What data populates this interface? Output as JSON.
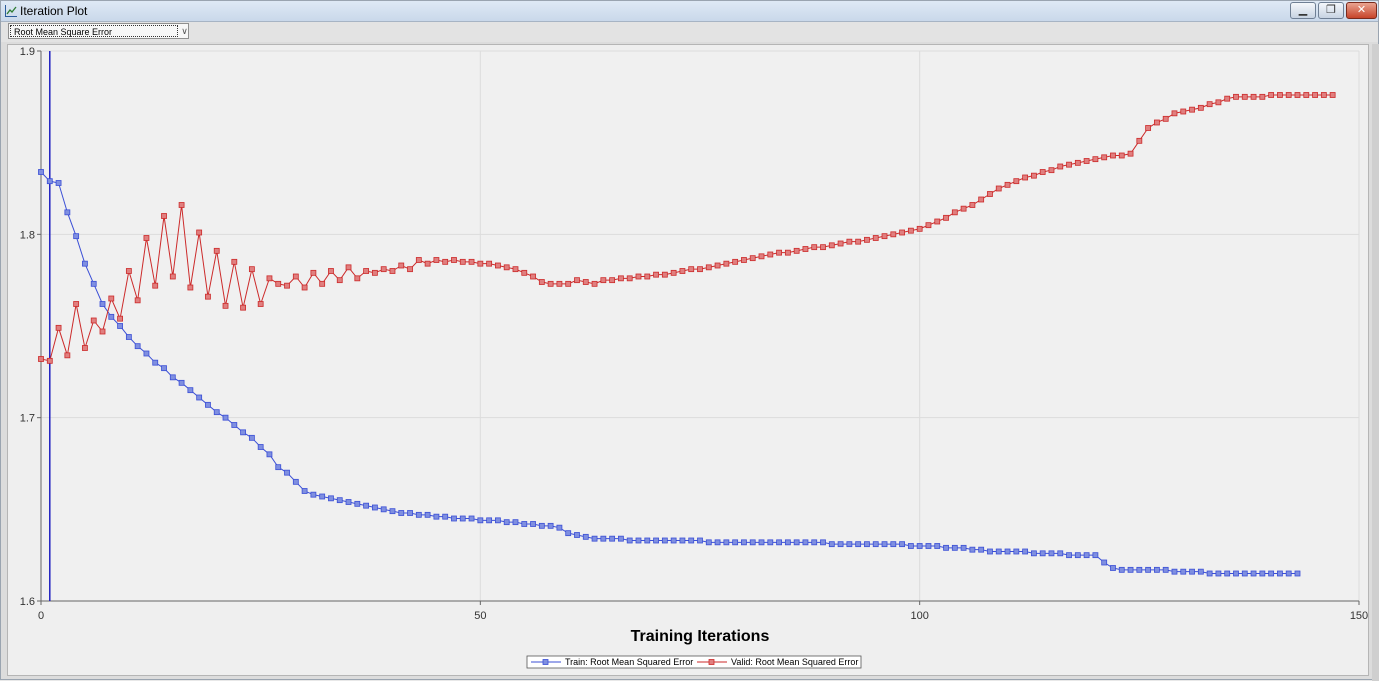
{
  "window": {
    "title": "Iteration Plot",
    "icon": "chart-icon",
    "buttons": {
      "minimize": "minimize-icon",
      "restore": "restore-icon",
      "close": "close-icon"
    }
  },
  "toolbar": {
    "statistic_select": {
      "value": "Root Mean Square Error"
    }
  },
  "chart_data": {
    "type": "line",
    "title": "",
    "xlabel": "Training Iterations",
    "ylabel": "",
    "xlim": [
      0,
      150
    ],
    "ylim": [
      1.6,
      1.9
    ],
    "x_ticks": [
      "0",
      "50",
      "100",
      "150"
    ],
    "y_ticks": [
      "1.6",
      "1.7",
      "1.8",
      "1.9"
    ],
    "grid": true,
    "legend_position": "bottom-center",
    "selected_iteration": 1,
    "series": [
      {
        "name": "Train: Root Mean Squared Error",
        "color": "#3b4fd6",
        "marker_fill": "#7f8fe0",
        "values": [
          1.834,
          1.829,
          1.828,
          1.812,
          1.799,
          1.784,
          1.773,
          1.762,
          1.755,
          1.75,
          1.744,
          1.739,
          1.735,
          1.73,
          1.727,
          1.722,
          1.719,
          1.715,
          1.711,
          1.707,
          1.703,
          1.7,
          1.696,
          1.692,
          1.689,
          1.684,
          1.68,
          1.673,
          1.67,
          1.665,
          1.66,
          1.658,
          1.657,
          1.656,
          1.655,
          1.654,
          1.653,
          1.652,
          1.651,
          1.65,
          1.649,
          1.648,
          1.648,
          1.647,
          1.647,
          1.646,
          1.646,
          1.645,
          1.645,
          1.645,
          1.644,
          1.644,
          1.644,
          1.643,
          1.643,
          1.642,
          1.642,
          1.641,
          1.641,
          1.64,
          1.637,
          1.636,
          1.635,
          1.634,
          1.634,
          1.634,
          1.634,
          1.633,
          1.633,
          1.633,
          1.633,
          1.633,
          1.633,
          1.633,
          1.633,
          1.633,
          1.632,
          1.632,
          1.632,
          1.632,
          1.632,
          1.632,
          1.632,
          1.632,
          1.632,
          1.632,
          1.632,
          1.632,
          1.632,
          1.632,
          1.631,
          1.631,
          1.631,
          1.631,
          1.631,
          1.631,
          1.631,
          1.631,
          1.631,
          1.63,
          1.63,
          1.63,
          1.63,
          1.629,
          1.629,
          1.629,
          1.628,
          1.628,
          1.627,
          1.627,
          1.627,
          1.627,
          1.627,
          1.626,
          1.626,
          1.626,
          1.626,
          1.625,
          1.625,
          1.625,
          1.625,
          1.621,
          1.618,
          1.617,
          1.617,
          1.617,
          1.617,
          1.617,
          1.617,
          1.616,
          1.616,
          1.616,
          1.616,
          1.615,
          1.615,
          1.615,
          1.615,
          1.615,
          1.615,
          1.615,
          1.615,
          1.615,
          1.615,
          1.615
        ]
      },
      {
        "name": "Valid: Root Mean Squared Error",
        "color": "#cc2a2a",
        "marker_fill": "#e07f7f",
        "values": [
          1.732,
          1.731,
          1.749,
          1.734,
          1.762,
          1.738,
          1.753,
          1.747,
          1.765,
          1.754,
          1.78,
          1.764,
          1.798,
          1.772,
          1.81,
          1.777,
          1.816,
          1.771,
          1.801,
          1.766,
          1.791,
          1.761,
          1.785,
          1.76,
          1.781,
          1.762,
          1.776,
          1.773,
          1.772,
          1.777,
          1.771,
          1.779,
          1.773,
          1.78,
          1.775,
          1.782,
          1.776,
          1.78,
          1.779,
          1.781,
          1.78,
          1.783,
          1.781,
          1.786,
          1.784,
          1.786,
          1.785,
          1.786,
          1.785,
          1.785,
          1.784,
          1.784,
          1.783,
          1.782,
          1.781,
          1.779,
          1.777,
          1.774,
          1.773,
          1.773,
          1.773,
          1.775,
          1.774,
          1.773,
          1.775,
          1.775,
          1.776,
          1.776,
          1.777,
          1.777,
          1.778,
          1.778,
          1.779,
          1.78,
          1.781,
          1.781,
          1.782,
          1.783,
          1.784,
          1.785,
          1.786,
          1.787,
          1.788,
          1.789,
          1.79,
          1.79,
          1.791,
          1.792,
          1.793,
          1.793,
          1.794,
          1.795,
          1.796,
          1.796,
          1.797,
          1.798,
          1.799,
          1.8,
          1.801,
          1.802,
          1.803,
          1.805,
          1.807,
          1.809,
          1.812,
          1.814,
          1.816,
          1.819,
          1.822,
          1.825,
          1.827,
          1.829,
          1.831,
          1.832,
          1.834,
          1.835,
          1.837,
          1.838,
          1.839,
          1.84,
          1.841,
          1.842,
          1.843,
          1.843,
          1.844,
          1.851,
          1.858,
          1.861,
          1.863,
          1.866,
          1.867,
          1.868,
          1.869,
          1.871,
          1.872,
          1.874,
          1.875,
          1.875,
          1.875,
          1.875,
          1.876,
          1.876,
          1.876,
          1.876,
          1.876,
          1.876,
          1.876,
          1.876
        ]
      }
    ]
  }
}
